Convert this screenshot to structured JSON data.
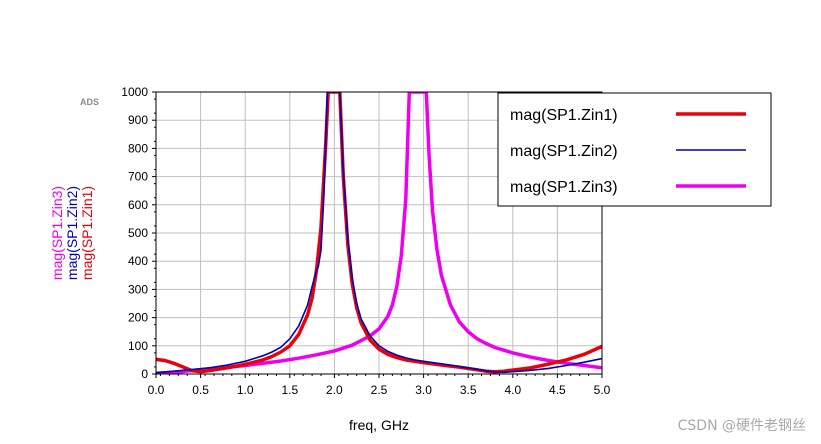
{
  "logo_text": "ADS",
  "watermark": "CSDN @硬件老钢丝",
  "chart_data": {
    "type": "line",
    "xlabel": "freq, GHz",
    "xlim": [
      0,
      5
    ],
    "ylim": [
      0,
      1000
    ],
    "xticks": [
      "0.0",
      "0.5",
      "1.0",
      "1.5",
      "2.0",
      "2.5",
      "3.0",
      "3.5",
      "4.0",
      "4.5",
      "5.0"
    ],
    "yticks": [
      "0",
      "100",
      "200",
      "300",
      "400",
      "500",
      "600",
      "700",
      "800",
      "900",
      "1000"
    ],
    "grid": true,
    "legend_position": "top-right",
    "ylabel_series_order": [
      "mag(SP1.Zin3)",
      "mag(SP1.Zin2)",
      "mag(SP1.Zin1)"
    ],
    "series": [
      {
        "name": "mag(SP1.Zin1)",
        "color": "#e8000b",
        "stroke": "thick",
        "points": [
          [
            0,
            52
          ],
          [
            0.1,
            48
          ],
          [
            0.2,
            38
          ],
          [
            0.3,
            25
          ],
          [
            0.4,
            12
          ],
          [
            0.5,
            8
          ],
          [
            0.6,
            12
          ],
          [
            0.7,
            17
          ],
          [
            0.8,
            22
          ],
          [
            0.9,
            28
          ],
          [
            1.0,
            34
          ],
          [
            1.1,
            42
          ],
          [
            1.2,
            50
          ],
          [
            1.3,
            62
          ],
          [
            1.4,
            78
          ],
          [
            1.5,
            100
          ],
          [
            1.6,
            140
          ],
          [
            1.7,
            210
          ],
          [
            1.75,
            270
          ],
          [
            1.8,
            370
          ],
          [
            1.85,
            520
          ],
          [
            1.9,
            800
          ],
          [
            1.93,
            1000
          ],
          [
            2.06,
            1000
          ],
          [
            2.1,
            700
          ],
          [
            2.15,
            460
          ],
          [
            2.2,
            320
          ],
          [
            2.25,
            235
          ],
          [
            2.3,
            180
          ],
          [
            2.4,
            120
          ],
          [
            2.5,
            88
          ],
          [
            2.6,
            70
          ],
          [
            2.7,
            58
          ],
          [
            2.8,
            50
          ],
          [
            2.9,
            45
          ],
          [
            3.0,
            40
          ],
          [
            3.2,
            32
          ],
          [
            3.4,
            24
          ],
          [
            3.6,
            15
          ],
          [
            3.7,
            10
          ],
          [
            3.8,
            8
          ],
          [
            3.9,
            10
          ],
          [
            4.0,
            14
          ],
          [
            4.2,
            22
          ],
          [
            4.4,
            35
          ],
          [
            4.6,
            50
          ],
          [
            4.8,
            70
          ],
          [
            5.0,
            98
          ]
        ]
      },
      {
        "name": "mag(SP1.Zin2)",
        "color": "#0000b4",
        "stroke": "thin",
        "points": [
          [
            0,
            5
          ],
          [
            0.2,
            10
          ],
          [
            0.4,
            16
          ],
          [
            0.6,
            22
          ],
          [
            0.8,
            32
          ],
          [
            1.0,
            45
          ],
          [
            1.1,
            55
          ],
          [
            1.2,
            65
          ],
          [
            1.3,
            78
          ],
          [
            1.4,
            95
          ],
          [
            1.5,
            125
          ],
          [
            1.6,
            170
          ],
          [
            1.7,
            245
          ],
          [
            1.75,
            310
          ],
          [
            1.8,
            370
          ],
          [
            1.82,
            380
          ],
          [
            1.85,
            440
          ],
          [
            1.88,
            620
          ],
          [
            1.9,
            800
          ],
          [
            1.92,
            1000
          ],
          [
            2.06,
            1000
          ],
          [
            2.1,
            720
          ],
          [
            2.15,
            480
          ],
          [
            2.2,
            340
          ],
          [
            2.25,
            250
          ],
          [
            2.3,
            195
          ],
          [
            2.4,
            135
          ],
          [
            2.5,
            100
          ],
          [
            2.6,
            80
          ],
          [
            2.7,
            67
          ],
          [
            2.8,
            57
          ],
          [
            2.9,
            50
          ],
          [
            3.0,
            45
          ],
          [
            3.2,
            36
          ],
          [
            3.4,
            27
          ],
          [
            3.6,
            17
          ],
          [
            3.7,
            11
          ],
          [
            3.8,
            7
          ],
          [
            3.9,
            6
          ],
          [
            4.0,
            8
          ],
          [
            4.2,
            13
          ],
          [
            4.4,
            20
          ],
          [
            4.6,
            30
          ],
          [
            4.8,
            42
          ],
          [
            5.0,
            55
          ]
        ]
      },
      {
        "name": "mag(SP1.Zin3)",
        "color": "#ee00ee",
        "stroke": "thick",
        "points": [
          [
            0,
            2
          ],
          [
            0.2,
            6
          ],
          [
            0.4,
            12
          ],
          [
            0.6,
            18
          ],
          [
            0.8,
            24
          ],
          [
            1.0,
            30
          ],
          [
            1.2,
            38
          ],
          [
            1.4,
            46
          ],
          [
            1.6,
            56
          ],
          [
            1.8,
            68
          ],
          [
            2.0,
            82
          ],
          [
            2.2,
            102
          ],
          [
            2.4,
            135
          ],
          [
            2.5,
            160
          ],
          [
            2.6,
            205
          ],
          [
            2.65,
            245
          ],
          [
            2.7,
            310
          ],
          [
            2.75,
            420
          ],
          [
            2.8,
            620
          ],
          [
            2.84,
            1000
          ],
          [
            3.03,
            1000
          ],
          [
            3.06,
            780
          ],
          [
            3.1,
            580
          ],
          [
            3.15,
            440
          ],
          [
            3.2,
            350
          ],
          [
            3.3,
            245
          ],
          [
            3.4,
            185
          ],
          [
            3.5,
            150
          ],
          [
            3.6,
            125
          ],
          [
            3.7,
            108
          ],
          [
            3.8,
            94
          ],
          [
            4.0,
            75
          ],
          [
            4.2,
            60
          ],
          [
            4.4,
            48
          ],
          [
            4.6,
            38
          ],
          [
            4.8,
            30
          ],
          [
            5.0,
            22
          ]
        ]
      }
    ]
  }
}
